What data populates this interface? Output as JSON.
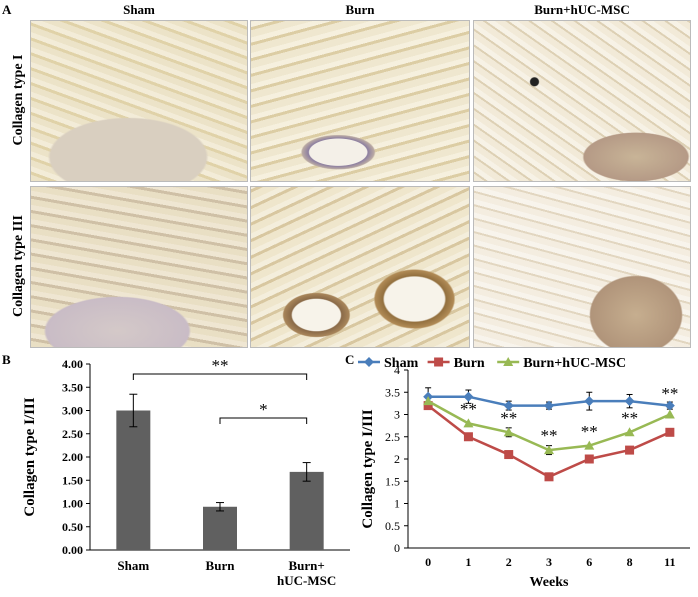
{
  "panels": {
    "a": "A",
    "b": "B",
    "c": "C"
  },
  "columns": [
    "Sham",
    "Burn",
    "Burn+hUC-MSC"
  ],
  "rows": [
    "Collagen type  I",
    "Collagen type  III"
  ],
  "chart_data": [
    {
      "type": "bar",
      "ylabel": "Collagen type I/III",
      "categories": [
        "Sham",
        "Burn",
        "Burn+\nhUC-MSC"
      ],
      "values": [
        3.0,
        0.93,
        1.68
      ],
      "errors": [
        0.35,
        0.09,
        0.2
      ],
      "ylim": [
        0,
        4
      ],
      "yticks": [
        "0.00",
        "0.50",
        "1.00",
        "1.50",
        "2.00",
        "2.50",
        "3.00",
        "3.50",
        "4.00"
      ],
      "bar_color": "#606060",
      "significance": [
        {
          "from": 0,
          "to": 2,
          "label": "**"
        },
        {
          "from": 1,
          "to": 2,
          "label": "*"
        }
      ]
    },
    {
      "type": "line",
      "ylabel": "Collagen type  I/III",
      "xlabel": "Weeks",
      "x": [
        "0",
        "1",
        "2",
        "3",
        "6",
        "8",
        "11"
      ],
      "ylim": [
        0,
        4
      ],
      "yticks": [
        "0",
        "0.5",
        "1",
        "1.5",
        "2",
        "2.5",
        "3",
        "3.5",
        "4"
      ],
      "legend": "top",
      "series": [
        {
          "name": "Sham",
          "color": "#4a7ebb",
          "marker": "diamond",
          "values": [
            3.4,
            3.4,
            3.2,
            3.2,
            3.3,
            3.3,
            3.2
          ],
          "errors": [
            0.2,
            0.15,
            0.1,
            0.08,
            0.2,
            0.15,
            0.08
          ]
        },
        {
          "name": "Burn",
          "color": "#be4b48",
          "marker": "square",
          "values": [
            3.2,
            2.5,
            2.1,
            1.6,
            2.0,
            2.2,
            2.6
          ],
          "errors": [
            0,
            0,
            0,
            0,
            0,
            0,
            0
          ]
        },
        {
          "name": "Burn+hUC-MSC",
          "color": "#98b954",
          "marker": "triangle",
          "values": [
            3.3,
            2.8,
            2.6,
            2.2,
            2.3,
            2.6,
            3.0
          ],
          "errors": [
            0,
            0,
            0.1,
            0.1,
            0,
            0,
            0
          ]
        }
      ],
      "annotations": [
        "**",
        "**",
        "**",
        "**",
        "**",
        "**"
      ]
    }
  ]
}
